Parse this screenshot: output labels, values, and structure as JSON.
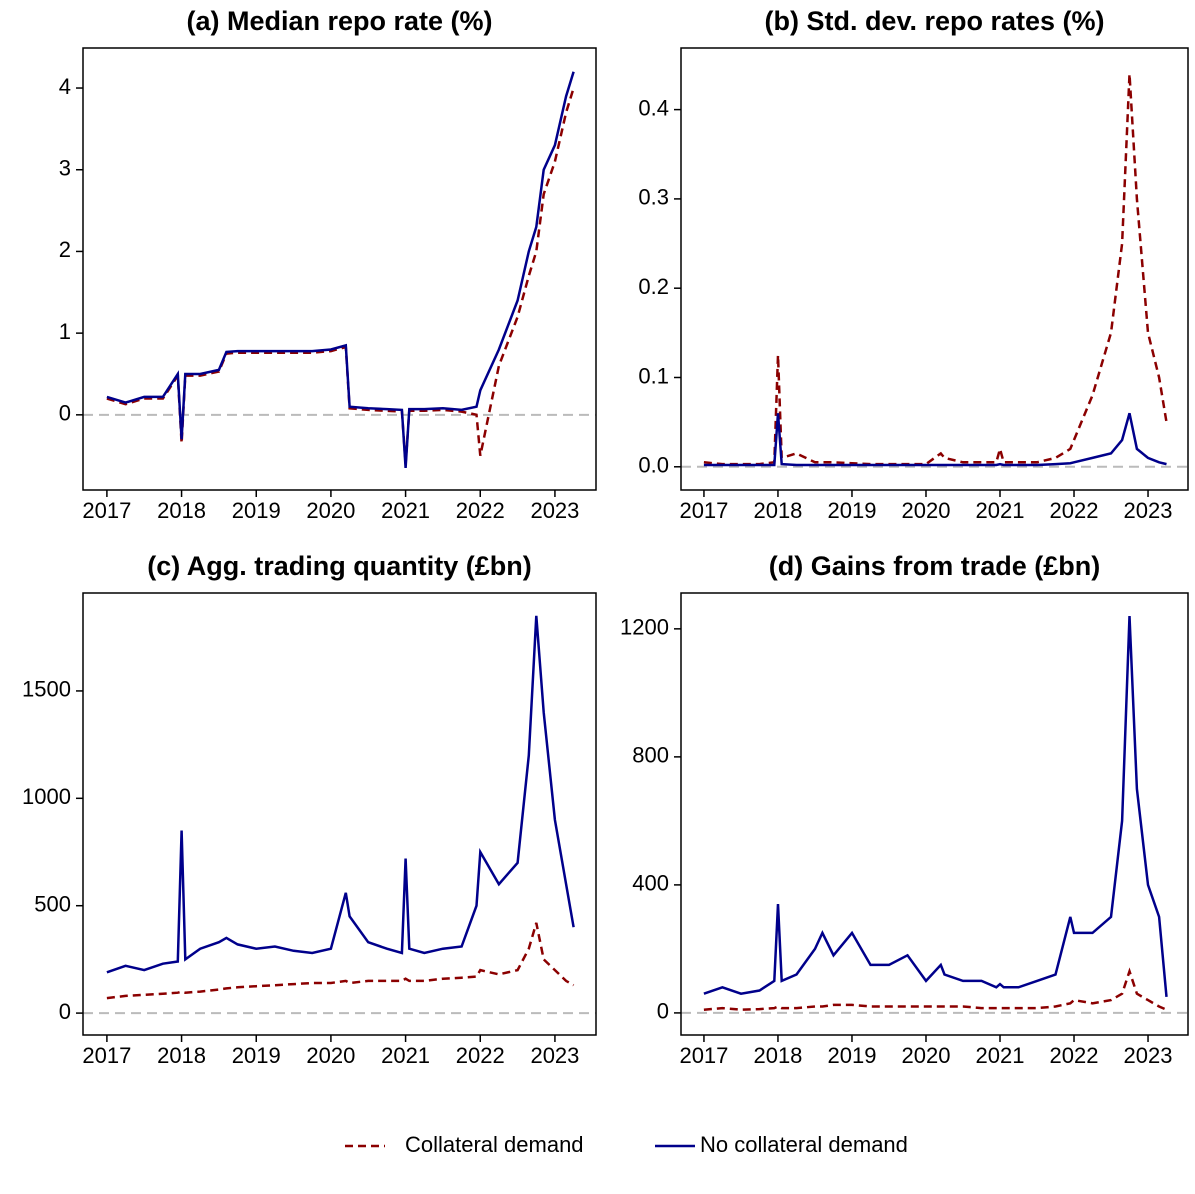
{
  "chart_data": [
    {
      "type": "line",
      "title": "(a) Median repo rate (%)",
      "legend": "bottom",
      "reference_line": 0,
      "x": [
        2017.0,
        2017.25,
        2017.5,
        2017.75,
        2017.95,
        2018.0,
        2018.05,
        2018.25,
        2018.5,
        2018.6,
        2018.75,
        2019.0,
        2019.25,
        2019.5,
        2019.75,
        2020.0,
        2020.2,
        2020.25,
        2020.5,
        2020.75,
        2020.95,
        2021.0,
        2021.05,
        2021.25,
        2021.5,
        2021.75,
        2021.95,
        2022.0,
        2022.25,
        2022.5,
        2022.65,
        2022.75,
        2022.85,
        2023.0,
        2023.15,
        2023.25
      ],
      "xlim": [
        2016.68,
        2023.55
      ],
      "xticks": [
        2017,
        2018,
        2019,
        2020,
        2021,
        2022,
        2023
      ],
      "ylim": [
        -0.92,
        4.49
      ],
      "yticks": [
        0,
        1,
        2,
        3,
        4
      ],
      "series": [
        {
          "name": "Collateral demand",
          "color": "#8b0000",
          "linestyle": "dashed",
          "values": [
            0.2,
            0.13,
            0.2,
            0.2,
            0.48,
            -0.35,
            0.48,
            0.48,
            0.53,
            0.75,
            0.76,
            0.76,
            0.76,
            0.76,
            0.76,
            0.78,
            0.83,
            0.08,
            0.06,
            0.05,
            0.04,
            -0.6,
            0.05,
            0.05,
            0.06,
            0.04,
            0.0,
            -0.5,
            0.6,
            1.2,
            1.7,
            2.0,
            2.7,
            3.1,
            3.7,
            4.0
          ]
        },
        {
          "name": "No collateral demand",
          "color": "#00008b",
          "linestyle": "solid",
          "values": [
            0.22,
            0.15,
            0.22,
            0.22,
            0.5,
            -0.3,
            0.5,
            0.5,
            0.55,
            0.77,
            0.78,
            0.78,
            0.78,
            0.78,
            0.78,
            0.8,
            0.85,
            0.1,
            0.08,
            0.07,
            0.06,
            -0.65,
            0.07,
            0.07,
            0.08,
            0.06,
            0.1,
            0.3,
            0.8,
            1.4,
            2.0,
            2.3,
            3.0,
            3.3,
            3.9,
            4.2
          ]
        }
      ]
    },
    {
      "type": "line",
      "title": "(b) Std. dev. repo rates (%)",
      "reference_line": 0,
      "x": [
        2017.0,
        2017.25,
        2017.5,
        2017.75,
        2017.95,
        2018.0,
        2018.05,
        2018.25,
        2018.5,
        2018.6,
        2018.75,
        2019.0,
        2019.25,
        2019.5,
        2019.75,
        2020.0,
        2020.2,
        2020.25,
        2020.5,
        2020.75,
        2020.95,
        2021.0,
        2021.05,
        2021.25,
        2021.5,
        2021.75,
        2021.95,
        2022.0,
        2022.25,
        2022.5,
        2022.65,
        2022.75,
        2022.85,
        2023.0,
        2023.15,
        2023.25
      ],
      "xlim": [
        2016.69,
        2023.54
      ],
      "xticks": [
        2017,
        2018,
        2019,
        2020,
        2021,
        2022,
        2023
      ],
      "ylim": [
        -0.026,
        0.469
      ],
      "yticks": [
        {
          "value": 0,
          "label": "0.0"
        },
        0.1,
        0.2,
        0.3,
        0.4
      ],
      "series": [
        {
          "name": "Collateral demand",
          "color": "#8b0000",
          "linestyle": "dashed",
          "values": [
            0.005,
            0.003,
            0.003,
            0.003,
            0.005,
            0.125,
            0.01,
            0.015,
            0.005,
            0.005,
            0.005,
            0.004,
            0.003,
            0.003,
            0.003,
            0.003,
            0.015,
            0.01,
            0.005,
            0.005,
            0.005,
            0.02,
            0.005,
            0.005,
            0.005,
            0.01,
            0.02,
            0.03,
            0.08,
            0.15,
            0.25,
            0.44,
            0.3,
            0.15,
            0.1,
            0.05
          ]
        },
        {
          "name": "No collateral demand",
          "color": "#00008b",
          "linestyle": "solid",
          "values": [
            0.002,
            0.002,
            0.002,
            0.002,
            0.002,
            0.06,
            0.003,
            0.002,
            0.002,
            0.002,
            0.002,
            0.002,
            0.002,
            0.002,
            0.002,
            0.002,
            0.002,
            0.002,
            0.002,
            0.002,
            0.002,
            0.003,
            0.002,
            0.002,
            0.002,
            0.003,
            0.004,
            0.005,
            0.01,
            0.015,
            0.03,
            0.06,
            0.02,
            0.01,
            0.005,
            0.003
          ]
        }
      ]
    },
    {
      "type": "line",
      "title": "(c) Agg. trading quantity (£bn)",
      "reference_line": 0,
      "x": [
        2017.0,
        2017.25,
        2017.5,
        2017.75,
        2017.95,
        2018.0,
        2018.05,
        2018.25,
        2018.5,
        2018.6,
        2018.75,
        2019.0,
        2019.25,
        2019.5,
        2019.75,
        2020.0,
        2020.2,
        2020.25,
        2020.5,
        2020.75,
        2020.95,
        2021.0,
        2021.05,
        2021.25,
        2021.5,
        2021.75,
        2021.95,
        2022.0,
        2022.25,
        2022.5,
        2022.65,
        2022.75,
        2022.85,
        2023.0,
        2023.15,
        2023.25
      ],
      "xlim": [
        2016.68,
        2023.55
      ],
      "xticks": [
        2017,
        2018,
        2019,
        2020,
        2021,
        2022,
        2023
      ],
      "ylim": [
        -102,
        1956
      ],
      "yticks": [
        0,
        500,
        1000,
        1500
      ],
      "series": [
        {
          "name": "Collateral demand",
          "color": "#8b0000",
          "linestyle": "dashed",
          "values": [
            70,
            80,
            85,
            90,
            95,
            100,
            95,
            100,
            110,
            115,
            120,
            125,
            130,
            135,
            140,
            140,
            150,
            140,
            150,
            150,
            150,
            160,
            150,
            150,
            160,
            165,
            170,
            200,
            180,
            200,
            300,
            420,
            250,
            200,
            150,
            130
          ]
        },
        {
          "name": "No collateral demand",
          "color": "#00008b",
          "linestyle": "solid",
          "values": [
            190,
            220,
            200,
            230,
            240,
            850,
            250,
            300,
            330,
            350,
            320,
            300,
            310,
            290,
            280,
            300,
            560,
            450,
            330,
            300,
            280,
            720,
            300,
            280,
            300,
            310,
            500,
            750,
            600,
            700,
            1200,
            1850,
            1400,
            900,
            600,
            400
          ]
        }
      ]
    },
    {
      "type": "line",
      "title": "(d) Gains from trade (£bn)",
      "reference_line": 0,
      "x": [
        2017.0,
        2017.25,
        2017.5,
        2017.75,
        2017.95,
        2018.0,
        2018.05,
        2018.25,
        2018.5,
        2018.6,
        2018.75,
        2019.0,
        2019.25,
        2019.5,
        2019.75,
        2020.0,
        2020.2,
        2020.25,
        2020.5,
        2020.75,
        2020.95,
        2021.0,
        2021.05,
        2021.25,
        2021.5,
        2021.75,
        2021.95,
        2022.0,
        2022.25,
        2022.5,
        2022.65,
        2022.75,
        2022.85,
        2023.0,
        2023.15,
        2023.25
      ],
      "xlim": [
        2016.69,
        2023.54
      ],
      "xticks": [
        2017,
        2018,
        2019,
        2020,
        2021,
        2022,
        2023
      ],
      "ylim": [
        -69,
        1312
      ],
      "yticks": [
        0,
        400,
        800,
        1200
      ],
      "series": [
        {
          "name": "Collateral demand",
          "color": "#8b0000",
          "linestyle": "dashed",
          "values": [
            10,
            15,
            10,
            12,
            15,
            20,
            15,
            15,
            20,
            20,
            25,
            25,
            20,
            20,
            20,
            20,
            20,
            20,
            20,
            15,
            15,
            15,
            15,
            15,
            15,
            20,
            30,
            40,
            30,
            40,
            60,
            130,
            60,
            40,
            20,
            10
          ]
        },
        {
          "name": "No collateral demand",
          "color": "#00008b",
          "linestyle": "solid",
          "values": [
            60,
            80,
            60,
            70,
            100,
            340,
            100,
            120,
            200,
            250,
            180,
            250,
            150,
            150,
            180,
            100,
            150,
            120,
            100,
            100,
            80,
            90,
            80,
            80,
            100,
            120,
            300,
            250,
            250,
            300,
            600,
            1240,
            700,
            400,
            300,
            50
          ]
        }
      ]
    }
  ]
}
